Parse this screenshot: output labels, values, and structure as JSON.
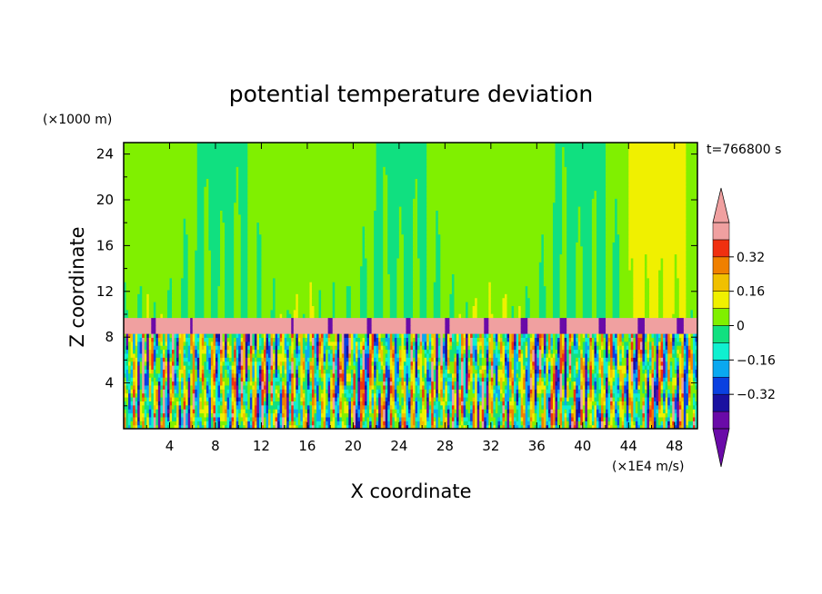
{
  "chart_data": {
    "type": "heatmap",
    "title": "potential temperature deviation",
    "time_label": "t=766800 s",
    "xlabel": "X coordinate",
    "ylabel": "Z coordinate",
    "x_unit": "(×1E4 m/s)",
    "y_unit": "(×1000 m)",
    "xlim": [
      0,
      50
    ],
    "ylim": [
      0,
      25
    ],
    "xticks": [
      "4",
      "8",
      "12",
      "16",
      "20",
      "24",
      "28",
      "32",
      "36",
      "40",
      "44",
      "48"
    ],
    "yticks": [
      "4",
      "8",
      "12",
      "16",
      "20",
      "24"
    ],
    "colorbar": {
      "levels": [
        -0.48,
        -0.4,
        -0.32,
        -0.24,
        -0.16,
        -0.08,
        0,
        0.08,
        0.16,
        0.24,
        0.32,
        0.4,
        0.48
      ],
      "colors": [
        "#6a0aa8",
        "#1a10a0",
        "#0a40e0",
        "#0aa8f0",
        "#10f0d0",
        "#10e080",
        "#80f000",
        "#f0f000",
        "#f0c000",
        "#f08000",
        "#f03010",
        "#f0a0a0"
      ],
      "under_color": "#6a0aa8",
      "over_color": "#f0a0a0",
      "tick_labels": [
        "0.32",
        "0.16",
        "0",
        "−0.16",
        "−0.32"
      ]
    }
  }
}
